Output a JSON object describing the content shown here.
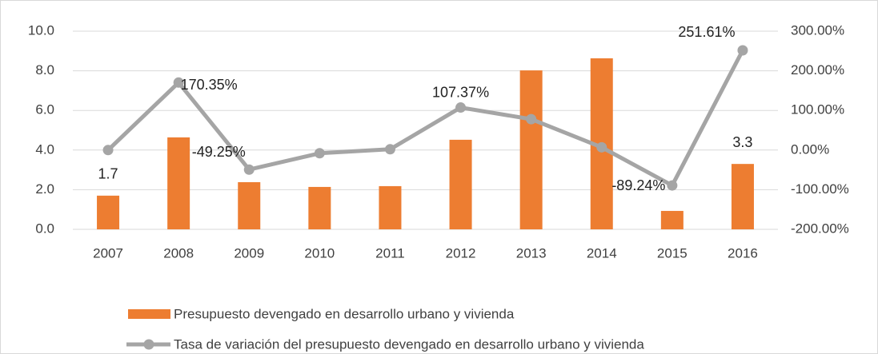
{
  "chart_data": {
    "type": "bar-line",
    "categories": [
      "2007",
      "2008",
      "2009",
      "2010",
      "2011",
      "2012",
      "2013",
      "2014",
      "2015",
      "2016"
    ],
    "series": [
      {
        "name": "Presupuesto devengado en desarrollo urbano y vivienda",
        "type": "bar",
        "color": "#ED7D31",
        "values": [
          1.7,
          4.64,
          2.38,
          2.14,
          2.18,
          4.52,
          8.02,
          8.63,
          0.93,
          3.3
        ],
        "value_labels": [
          "1.7",
          null,
          null,
          null,
          null,
          null,
          null,
          null,
          null,
          "3.3"
        ]
      },
      {
        "name": "Tasa de variación del presupuesto devengado en desarrollo urbano y vivienda",
        "type": "line",
        "axis": "y2",
        "color": "#A5A5A5",
        "values": [
          0,
          170.35,
          -49.25,
          -8,
          2,
          107.37,
          78,
          7,
          -89.24,
          251.61
        ],
        "value_labels": [
          null,
          "170.35%",
          "-49.25%",
          null,
          null,
          "107.37%",
          null,
          null,
          "-89.24%",
          "251.61%"
        ]
      }
    ],
    "ylim": [
      0,
      10
    ],
    "yticks": [
      {
        "value": 0,
        "label": "0.0"
      },
      {
        "value": 2,
        "label": "2.0"
      },
      {
        "value": 4,
        "label": "4.0"
      },
      {
        "value": 6,
        "label": "6.0"
      },
      {
        "value": 8,
        "label": "8.0"
      },
      {
        "value": 10,
        "label": "10.0"
      }
    ],
    "y2lim": [
      -200,
      300
    ],
    "y2ticks": [
      {
        "value": -200,
        "label": "-200.00%"
      },
      {
        "value": -100,
        "label": "-100.00%"
      },
      {
        "value": 0,
        "label": "0.00%"
      },
      {
        "value": 100,
        "label": "100.00%"
      },
      {
        "value": 200,
        "label": "200.00%"
      },
      {
        "value": 300,
        "label": "300.00%"
      }
    ],
    "grid": true,
    "legend": "bottom"
  }
}
